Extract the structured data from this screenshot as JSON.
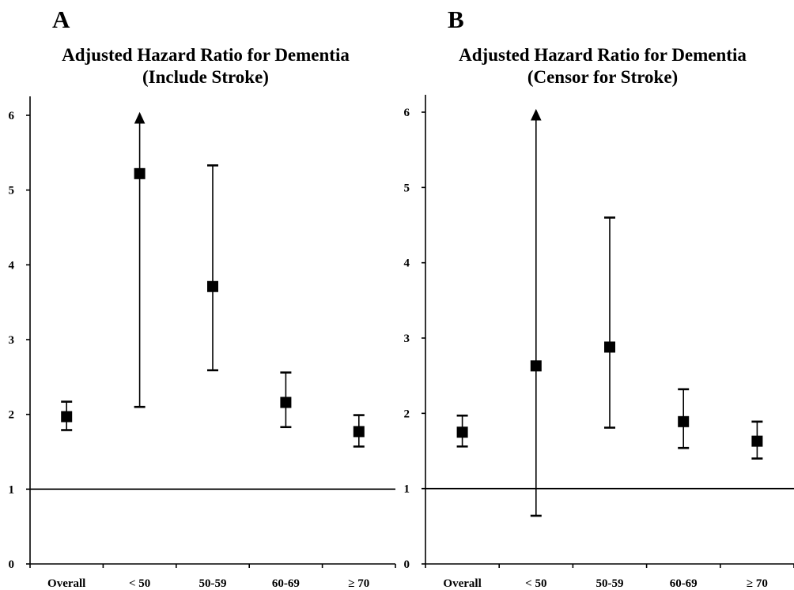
{
  "chart_data": [
    {
      "type": "scatter",
      "panel_label": "A",
      "title": "Adjusted Hazard Ratio for Dementia",
      "subtitle": "(Include Stroke)",
      "xlabel": "",
      "ylabel": "",
      "categories": [
        "Overall",
        "< 50",
        "50-59",
        "60-69",
        "≥ 70"
      ],
      "ylim": [
        0,
        6.25
      ],
      "yticks": [
        0,
        1,
        2,
        3,
        4,
        5,
        6
      ],
      "reference_line": 1,
      "grid": false,
      "legend": "none",
      "series": [
        {
          "values": [
            1.97,
            5.22,
            3.71,
            2.16,
            1.77
          ],
          "lower": [
            1.79,
            2.1,
            2.59,
            1.83,
            1.57
          ],
          "upper": [
            2.17,
            6.0,
            5.33,
            2.56,
            1.99
          ],
          "upper_truncated": [
            false,
            true,
            false,
            false,
            false
          ]
        }
      ]
    },
    {
      "type": "scatter",
      "panel_label": "B",
      "title": "Adjusted Hazard Ratio for Dementia",
      "subtitle": "(Censor for Stroke)",
      "xlabel": "",
      "ylabel": "",
      "categories": [
        "Overall",
        "< 50",
        "50-59",
        "60-69",
        "≥ 70"
      ],
      "ylim": [
        0,
        6.25
      ],
      "yticks": [
        0,
        1,
        2,
        3,
        4,
        5,
        6
      ],
      "reference_line": 1,
      "grid": false,
      "legend": "none",
      "series": [
        {
          "values": [
            1.75,
            2.63,
            2.88,
            1.89,
            1.63
          ],
          "lower": [
            1.56,
            0.64,
            1.81,
            1.54,
            1.4
          ],
          "upper": [
            1.97,
            6.0,
            4.6,
            2.32,
            1.89
          ],
          "upper_truncated": [
            false,
            true,
            false,
            false,
            false
          ]
        }
      ]
    }
  ]
}
